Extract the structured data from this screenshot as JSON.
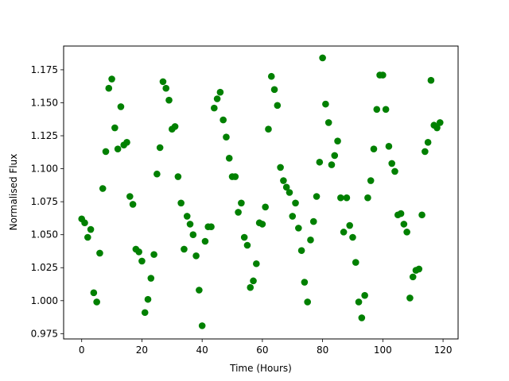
{
  "chart_data": {
    "type": "scatter",
    "title": "",
    "xlabel": "Time (Hours)",
    "ylabel": "Normalised Flux",
    "xlim": [
      -6,
      125
    ],
    "ylim": [
      0.971,
      1.193
    ],
    "grid": false,
    "xticks": [
      0,
      20,
      40,
      60,
      80,
      100,
      120
    ],
    "xtick_labels": [
      "0",
      "20",
      "40",
      "60",
      "80",
      "100",
      "120"
    ],
    "yticks": [
      0.975,
      1.0,
      1.025,
      1.05,
      1.075,
      1.1,
      1.125,
      1.15,
      1.175
    ],
    "ytick_labels": [
      "0.975",
      "1.000",
      "1.025",
      "1.050",
      "1.075",
      "1.100",
      "1.125",
      "1.150",
      "1.175"
    ],
    "marker_color": "#008000",
    "series": [
      {
        "x": [
          0,
          1,
          2,
          3,
          4,
          5,
          6,
          7,
          8,
          9,
          10,
          11,
          12,
          13,
          14,
          15,
          16,
          17,
          18,
          19,
          20,
          21,
          22,
          23,
          24,
          25,
          26,
          27,
          28,
          29,
          30,
          31,
          32,
          33,
          34,
          35,
          36,
          37,
          38,
          39,
          40,
          41,
          42,
          43,
          44,
          45,
          46,
          47,
          48,
          49,
          50,
          51,
          52,
          53,
          54,
          55,
          56,
          57,
          58,
          59,
          60,
          61,
          62,
          63,
          64,
          65,
          66,
          67,
          68,
          69,
          70,
          71,
          72,
          73,
          74,
          75,
          76,
          77,
          78,
          79,
          80,
          81,
          82,
          83,
          84,
          85,
          86,
          87,
          88,
          89,
          90,
          91,
          92,
          93,
          94,
          95,
          96,
          97,
          98,
          99,
          100,
          101,
          102,
          103,
          104,
          105,
          106,
          107,
          108,
          109,
          110,
          111,
          112,
          113,
          114,
          115,
          116,
          117,
          118,
          119
        ],
        "y": [
          1.062,
          1.059,
          1.048,
          1.054,
          1.006,
          0.999,
          1.036,
          1.085,
          1.113,
          1.161,
          1.168,
          1.131,
          1.115,
          1.147,
          1.118,
          1.12,
          1.079,
          1.073,
          1.039,
          1.037,
          1.03,
          0.991,
          1.001,
          1.017,
          1.035,
          1.096,
          1.116,
          1.166,
          1.161,
          1.152,
          1.13,
          1.132,
          1.094,
          1.074,
          1.039,
          1.064,
          1.058,
          1.05,
          1.034,
          1.008,
          0.981,
          1.045,
          1.056,
          1.056,
          1.146,
          1.153,
          1.158,
          1.137,
          1.124,
          1.108,
          1.094,
          1.094,
          1.067,
          1.074,
          1.048,
          1.042,
          1.01,
          1.015,
          1.028,
          1.059,
          1.058,
          1.071,
          1.13,
          1.17,
          1.16,
          1.148,
          1.101,
          1.091,
          1.086,
          1.082,
          1.064,
          1.074,
          1.055,
          1.038,
          1.014,
          0.999,
          1.046,
          1.06,
          1.079,
          1.105,
          1.184,
          1.149,
          1.135,
          1.103,
          1.11,
          1.121,
          1.078,
          1.052,
          1.078,
          1.057,
          1.048,
          1.029,
          0.999,
          0.987,
          1.004,
          1.078,
          1.091,
          1.115,
          1.145,
          1.171,
          1.171,
          1.145,
          1.117,
          1.104,
          1.098,
          1.065,
          1.066,
          1.058,
          1.052,
          1.002,
          1.018,
          1.023,
          1.024,
          1.065,
          1.113,
          1.12,
          1.167,
          1.133,
          1.131,
          1.135
        ]
      }
    ]
  }
}
